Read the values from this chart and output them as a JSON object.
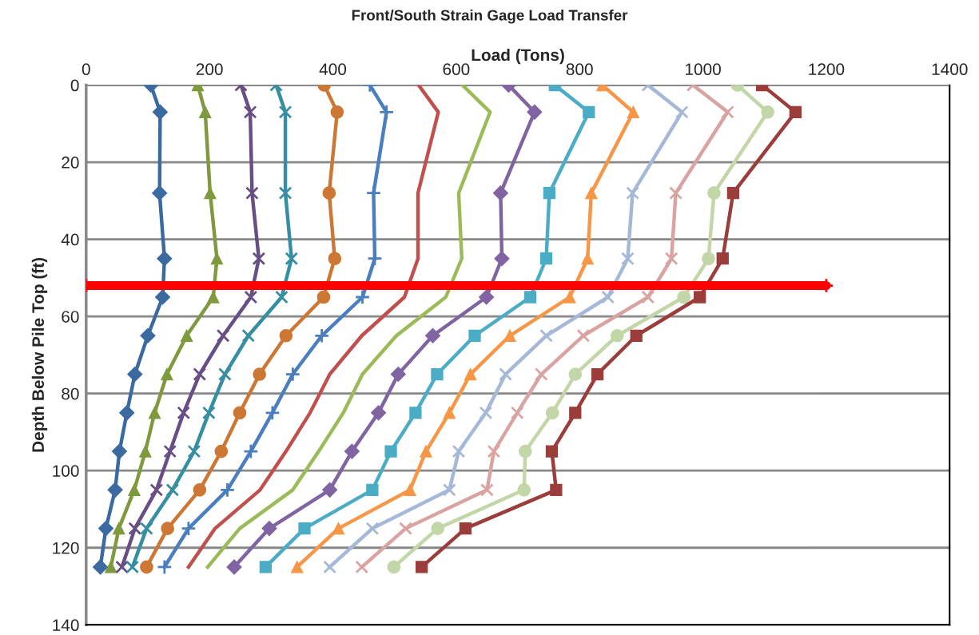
{
  "chart_data": {
    "type": "line",
    "title": "Front/South Strain Gage Load Transfer",
    "xlabel": "Load (Tons)",
    "ylabel": "Depth Below Pile Top (ft)",
    "xlim": [
      0,
      1400
    ],
    "xticks": [
      0,
      200,
      400,
      600,
      800,
      1000,
      1200,
      1400
    ],
    "ylim": [
      140,
      0
    ],
    "yticks": [
      0,
      20,
      40,
      60,
      80,
      100,
      120,
      140
    ],
    "grid": "y",
    "legend": false,
    "series": [
      {
        "color": "#3b6aa0",
        "marker": "diamond",
        "x": [
          105,
          120,
          119,
          127,
          124,
          100,
          79,
          66,
          54,
          47,
          32,
          23
        ],
        "values": [
          0,
          7,
          28,
          45,
          55,
          65,
          75,
          85,
          95,
          105,
          115,
          125
        ]
      },
      {
        "color": "#7f9a3e",
        "marker": "triangle",
        "x": [
          181,
          193,
          201,
          212,
          206,
          163,
          131,
          111,
          96,
          78,
          53,
          40
        ],
        "values": [
          0,
          7,
          28,
          45,
          55,
          65,
          75,
          85,
          95,
          105,
          115,
          125
        ]
      },
      {
        "color": "#674f85",
        "marker": "cross",
        "x": [
          251,
          266,
          269,
          280,
          267,
          222,
          184,
          158,
          136,
          114,
          79,
          58
        ],
        "values": [
          0,
          7,
          28,
          45,
          55,
          65,
          75,
          85,
          95,
          105,
          115,
          125
        ]
      },
      {
        "color": "#358ea1",
        "marker": "cross",
        "x": [
          308,
          323,
          323,
          333,
          317,
          263,
          225,
          199,
          175,
          140,
          98,
          75
        ],
        "values": [
          0,
          7,
          28,
          45,
          55,
          65,
          75,
          85,
          95,
          105,
          115,
          125
        ]
      },
      {
        "color": "#cc7733",
        "marker": "circle",
        "x": [
          386,
          407,
          394,
          403,
          385,
          324,
          281,
          249,
          219,
          184,
          132,
          98
        ],
        "values": [
          0,
          7,
          28,
          45,
          55,
          65,
          75,
          85,
          95,
          105,
          115,
          125
        ]
      },
      {
        "color": "#4a7ebf",
        "marker": "plus",
        "x": [
          460,
          487,
          466,
          468,
          448,
          382,
          335,
          302,
          267,
          229,
          166,
          127
        ],
        "values": [
          0,
          7,
          28,
          45,
          55,
          65,
          75,
          85,
          95,
          105,
          115,
          125
        ]
      },
      {
        "color": "#c0504d",
        "marker": "none",
        "x": [
          539,
          571,
          538,
          538,
          516,
          447,
          395,
          363,
          324,
          282,
          209,
          166
        ],
        "values": [
          0,
          7,
          28,
          45,
          55,
          65,
          75,
          85,
          95,
          105,
          115,
          125
        ]
      },
      {
        "color": "#9bbb59",
        "marker": "none",
        "x": [
          610,
          655,
          604,
          609,
          583,
          503,
          448,
          417,
          377,
          335,
          249,
          197
        ],
        "values": [
          0,
          7,
          28,
          45,
          55,
          65,
          75,
          85,
          95,
          105,
          115,
          125
        ]
      },
      {
        "color": "#8064a2",
        "marker": "diamond",
        "x": [
          685,
          727,
          672,
          674,
          649,
          562,
          506,
          474,
          431,
          395,
          297,
          240
        ],
        "values": [
          0,
          7,
          28,
          45,
          55,
          65,
          75,
          85,
          95,
          105,
          115,
          125
        ]
      },
      {
        "color": "#4bacc6",
        "marker": "square",
        "x": [
          760,
          815,
          751,
          746,
          720,
          630,
          569,
          534,
          494,
          464,
          354,
          291
        ],
        "values": [
          0,
          7,
          28,
          45,
          55,
          65,
          75,
          85,
          95,
          105,
          115,
          125
        ]
      },
      {
        "color": "#f79646",
        "marker": "triangle",
        "x": [
          837,
          887,
          819,
          813,
          784,
          687,
          623,
          589,
          551,
          525,
          409,
          342
        ],
        "values": [
          0,
          7,
          28,
          45,
          55,
          65,
          75,
          85,
          95,
          105,
          115,
          125
        ]
      },
      {
        "color": "#a5b8d7",
        "marker": "cross",
        "x": [
          911,
          966,
          886,
          878,
          846,
          746,
          680,
          648,
          604,
          589,
          464,
          395
        ],
        "values": [
          0,
          7,
          28,
          45,
          55,
          65,
          75,
          85,
          95,
          105,
          115,
          125
        ]
      },
      {
        "color": "#d9a3a1",
        "marker": "cross",
        "x": [
          984,
          1040,
          956,
          949,
          911,
          806,
          738,
          699,
          661,
          650,
          518,
          447
        ],
        "values": [
          0,
          7,
          28,
          45,
          55,
          65,
          75,
          85,
          95,
          105,
          115,
          125
        ]
      },
      {
        "color": "#c3d6a8",
        "marker": "circle",
        "x": [
          1056,
          1105,
          1018,
          1009,
          969,
          861,
          793,
          756,
          712,
          710,
          570,
          499
        ],
        "values": [
          0,
          7,
          28,
          45,
          55,
          65,
          75,
          85,
          95,
          105,
          115,
          125
        ]
      },
      {
        "color": "#9b3d3a",
        "marker": "square",
        "x": [
          1096,
          1150,
          1049,
          1032,
          995,
          892,
          829,
          793,
          755,
          762,
          615,
          544
        ],
        "values": [
          0,
          7,
          28,
          45,
          55,
          65,
          75,
          85,
          95,
          105,
          115,
          125
        ]
      },
      {
        "color": "#ff0000",
        "marker": "plus",
        "x": [
          0,
          1200
        ],
        "values": [
          52,
          52
        ]
      }
    ]
  }
}
